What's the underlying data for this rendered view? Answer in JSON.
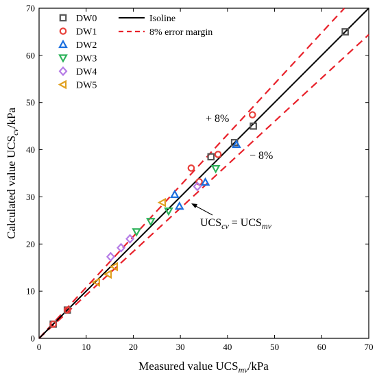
{
  "chart_data": {
    "type": "scatter",
    "xlabel": {
      "prefix": "Measured value UCS",
      "sub": "mv",
      "suffix": "/kPa"
    },
    "ylabel": {
      "prefix": "Calculated value UCS",
      "sub": "cv",
      "suffix": "/kPa"
    },
    "xlim": [
      0,
      70
    ],
    "ylim": [
      0,
      70
    ],
    "xticks": [
      0,
      10,
      20,
      30,
      40,
      50,
      60,
      70
    ],
    "yticks": [
      0,
      10,
      20,
      30,
      40,
      50,
      60,
      70
    ],
    "grid": false,
    "legend_position": "top-left",
    "series": [
      {
        "name": "DW0",
        "marker": "square",
        "color": "#555555",
        "points": [
          [
            3,
            3
          ],
          [
            6,
            6
          ],
          [
            36.5,
            38.5
          ],
          [
            41.5,
            41.5
          ],
          [
            45.5,
            45
          ],
          [
            65,
            65
          ]
        ]
      },
      {
        "name": "DW1",
        "marker": "circle",
        "color": "#e8403a",
        "points": [
          [
            3,
            3
          ],
          [
            6,
            6
          ],
          [
            32.3,
            36.1
          ],
          [
            34,
            33.2
          ],
          [
            38,
            39
          ],
          [
            45.3,
            47.4
          ]
        ]
      },
      {
        "name": "DW2",
        "marker": "triangle-up",
        "color": "#1a6fdf",
        "points": [
          [
            28.8,
            30.5
          ],
          [
            29.8,
            28
          ],
          [
            35.3,
            33.1
          ],
          [
            41.9,
            41.1
          ]
        ]
      },
      {
        "name": "DW3",
        "marker": "triangle-down",
        "color": "#2db25a",
        "points": [
          [
            20.7,
            22.6
          ],
          [
            23.7,
            24.8
          ],
          [
            27.5,
            27
          ],
          [
            37.5,
            36
          ]
        ]
      },
      {
        "name": "DW4",
        "marker": "diamond",
        "color": "#b57be6",
        "points": [
          [
            15.2,
            17.3
          ],
          [
            17.4,
            19.2
          ],
          [
            19.3,
            21.1
          ],
          [
            33.6,
            32.2
          ]
        ]
      },
      {
        "name": "DW5",
        "marker": "triangle-left",
        "color": "#e0a020",
        "points": [
          [
            12.2,
            11.9
          ],
          [
            14.7,
            13.6
          ],
          [
            16,
            15.2
          ],
          [
            26.2,
            28.8
          ]
        ]
      }
    ],
    "lines": [
      {
        "name": "Isoline",
        "slope": 1.0,
        "style": "solid",
        "color": "#000000"
      },
      {
        "name": "8% error margin",
        "slopes": [
          1.08,
          0.92
        ],
        "style": "dashed",
        "color": "#e8212a"
      }
    ],
    "annotations": {
      "plus": "+ 8%",
      "minus": "− 8%",
      "equation": {
        "left": "UCS",
        "left_sub": "cv",
        "mid": " = UCS",
        "right_sub": "mv"
      }
    }
  }
}
